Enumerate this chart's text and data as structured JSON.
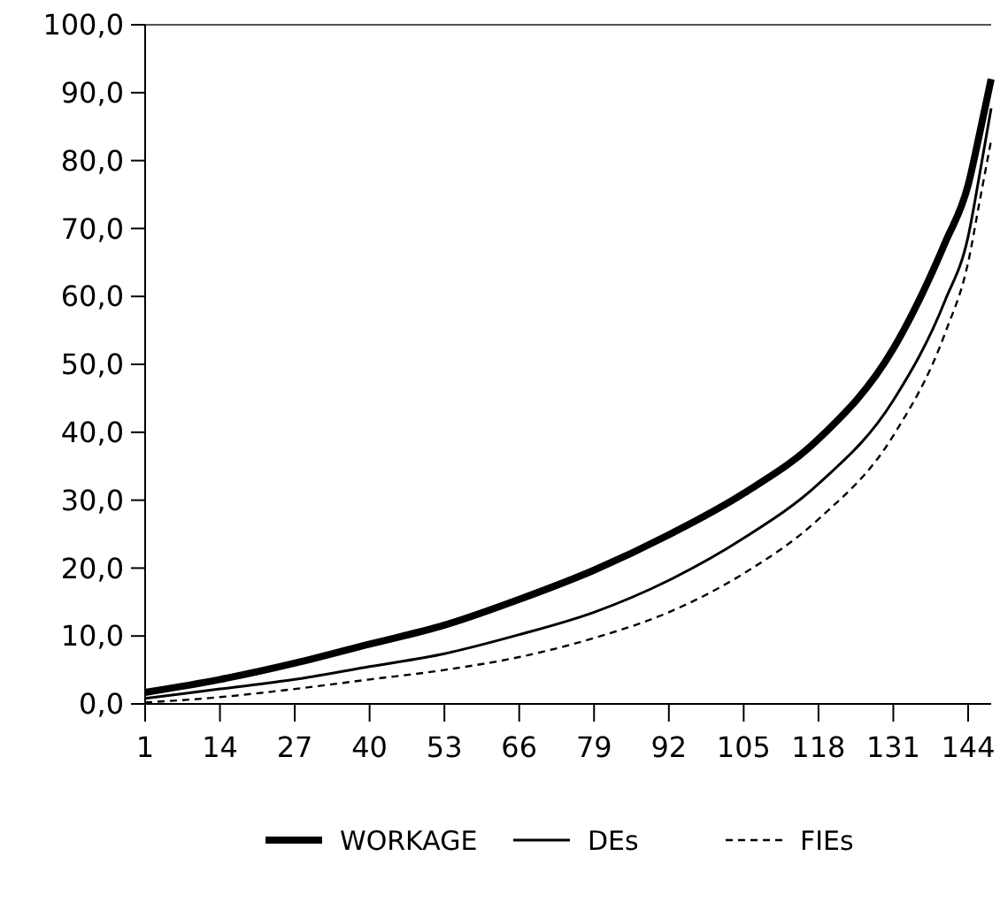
{
  "chart_data": {
    "type": "line",
    "x": [
      1,
      14,
      27,
      40,
      53,
      66,
      79,
      92,
      105,
      118,
      131,
      140,
      144,
      146,
      148
    ],
    "series": [
      {
        "name": "WORKAGE",
        "color": "#000000",
        "line_style": "solid",
        "values": [
          1.7,
          3.6,
          6.0,
          8.8,
          11.6,
          15.4,
          19.7,
          24.9,
          31.0,
          39.0,
          52.3,
          67.9,
          76.4,
          84.0,
          92.0
        ]
      },
      {
        "name": "DEs",
        "color": "#000000",
        "line_style": "solid",
        "values": [
          0.8,
          2.2,
          3.6,
          5.5,
          7.4,
          10.2,
          13.5,
          18.2,
          24.4,
          32.4,
          44.7,
          59.4,
          68.8,
          78.0,
          87.7
        ]
      },
      {
        "name": "FIEs",
        "color": "#000000",
        "line_style": "dashed",
        "values": [
          0.2,
          1.0,
          2.2,
          3.6,
          5.0,
          6.9,
          9.7,
          13.5,
          19.2,
          27.2,
          39.5,
          54.6,
          65.0,
          74.0,
          83.0
        ]
      }
    ],
    "xlim": [
      1,
      148
    ],
    "xticks": [
      1,
      14,
      27,
      40,
      53,
      66,
      79,
      92,
      105,
      118,
      131,
      144
    ],
    "ylim": [
      0,
      100
    ],
    "yticks": [
      {
        "value": 0,
        "label": "0,0"
      },
      {
        "value": 10,
        "label": "10,0"
      },
      {
        "value": 20,
        "label": "20,0"
      },
      {
        "value": 30,
        "label": "30,0"
      },
      {
        "value": 40,
        "label": "40,0"
      },
      {
        "value": 50,
        "label": "50,0"
      },
      {
        "value": 60,
        "label": "60,0"
      },
      {
        "value": 70,
        "label": "70,0"
      },
      {
        "value": 80,
        "label": "80,0"
      },
      {
        "value": 90,
        "label": "90,0"
      },
      {
        "value": 100,
        "label": "100,0"
      }
    ],
    "grid": false,
    "legend": "bottom",
    "marker": "none"
  }
}
